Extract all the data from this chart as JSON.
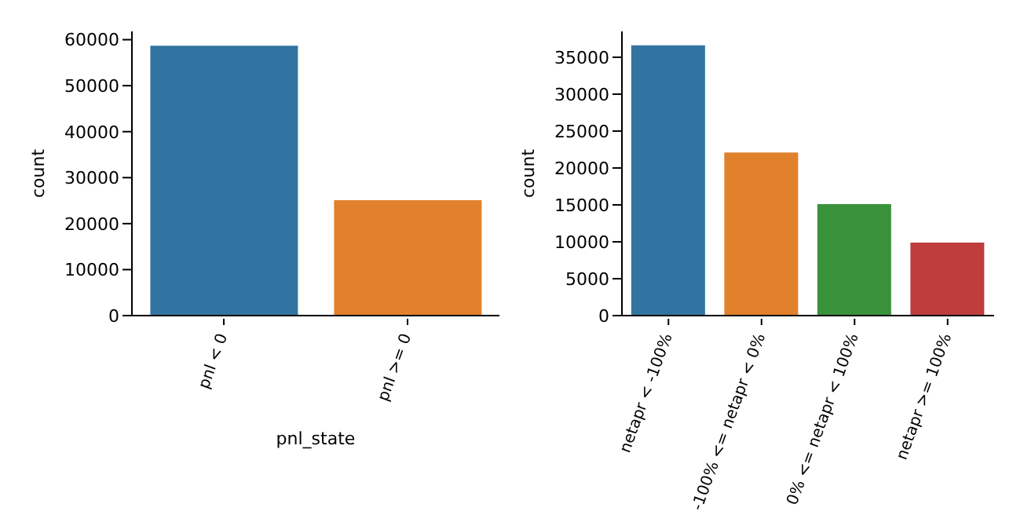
{
  "chart_data": [
    {
      "type": "bar",
      "xlabel": "pnl_state",
      "ylabel": "count",
      "categories": [
        "pnl < 0",
        "pnl >= 0"
      ],
      "values": [
        58700,
        25100
      ],
      "colors": [
        "#3274a1",
        "#e1812c"
      ],
      "ylim": [
        0,
        61800
      ],
      "yticks": [
        0,
        10000,
        20000,
        30000,
        40000,
        50000,
        60000
      ]
    },
    {
      "type": "bar",
      "ylabel": "count",
      "categories": [
        "netapr < -100%",
        "-100% <= netapr < 0%",
        "0% <= netapr < 100%",
        "netapr >= 100%"
      ],
      "values": [
        36600,
        22100,
        15100,
        9900
      ],
      "colors": [
        "#3274a1",
        "#e1812c",
        "#3a923a",
        "#c03d3e"
      ],
      "ylim": [
        0,
        38500
      ],
      "yticks": [
        0,
        5000,
        10000,
        15000,
        20000,
        25000,
        30000,
        35000
      ]
    }
  ]
}
